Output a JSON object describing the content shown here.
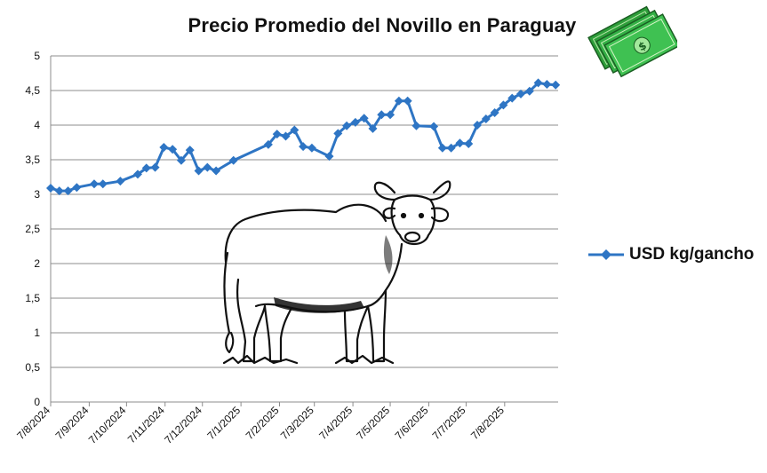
{
  "title": "Precio Promedio del Novillo en Paraguay",
  "chart_data": {
    "type": "line",
    "title": "Precio Promedio del Novillo en Paraguay",
    "ylim": [
      0,
      5
    ],
    "yticks": [
      "0",
      "0,5",
      "1",
      "1,5",
      "2",
      "2,5",
      "3",
      "3,5",
      "4",
      "4,5",
      "5"
    ],
    "x_range_days": [
      0,
      408
    ],
    "x_tick_labels": [
      "7/8/2024",
      "7/9/2024",
      "7/10/2024",
      "7/11/2024",
      "7/12/2024",
      "7/1/2025",
      "7/2/2025",
      "7/3/2025",
      "7/4/2025",
      "7/5/2025",
      "7/6/2025",
      "7/7/2025",
      "7/8/2025"
    ],
    "x_tick_days": [
      0,
      31,
      61,
      92,
      122,
      153,
      184,
      212,
      243,
      273,
      304,
      334,
      365
    ],
    "grid": "horizontal",
    "legend_position": "right",
    "series": [
      {
        "name": "USD kg/gancho",
        "color": "#2E75C4",
        "marker": "diamond",
        "days": [
          0,
          7,
          14,
          21,
          35,
          42,
          56,
          70,
          77,
          84,
          91,
          98,
          105,
          112,
          119,
          126,
          133,
          147,
          175,
          182,
          189,
          196,
          203,
          210,
          224,
          231,
          238,
          245,
          252,
          259,
          266,
          273,
          280,
          287,
          294,
          308,
          315,
          322,
          329,
          336,
          343,
          350,
          357,
          364,
          371,
          378,
          385,
          392,
          399,
          406
        ],
        "values": [
          3.09,
          3.05,
          3.05,
          3.1,
          3.15,
          3.15,
          3.19,
          3.29,
          3.38,
          3.39,
          3.68,
          3.65,
          3.49,
          3.64,
          3.34,
          3.39,
          3.34,
          3.49,
          3.72,
          3.87,
          3.84,
          3.93,
          3.69,
          3.67,
          3.55,
          3.88,
          3.99,
          4.04,
          4.1,
          3.95,
          4.15,
          4.15,
          4.35,
          4.35,
          3.99,
          3.98,
          3.67,
          3.67,
          3.74,
          3.73,
          4.0,
          4.09,
          4.18,
          4.29,
          4.39,
          4.45,
          4.49,
          4.61,
          4.59,
          4.58
        ]
      }
    ]
  },
  "icons": {
    "money": "money-stack-icon",
    "bull": "zebu-bull-illustration"
  }
}
